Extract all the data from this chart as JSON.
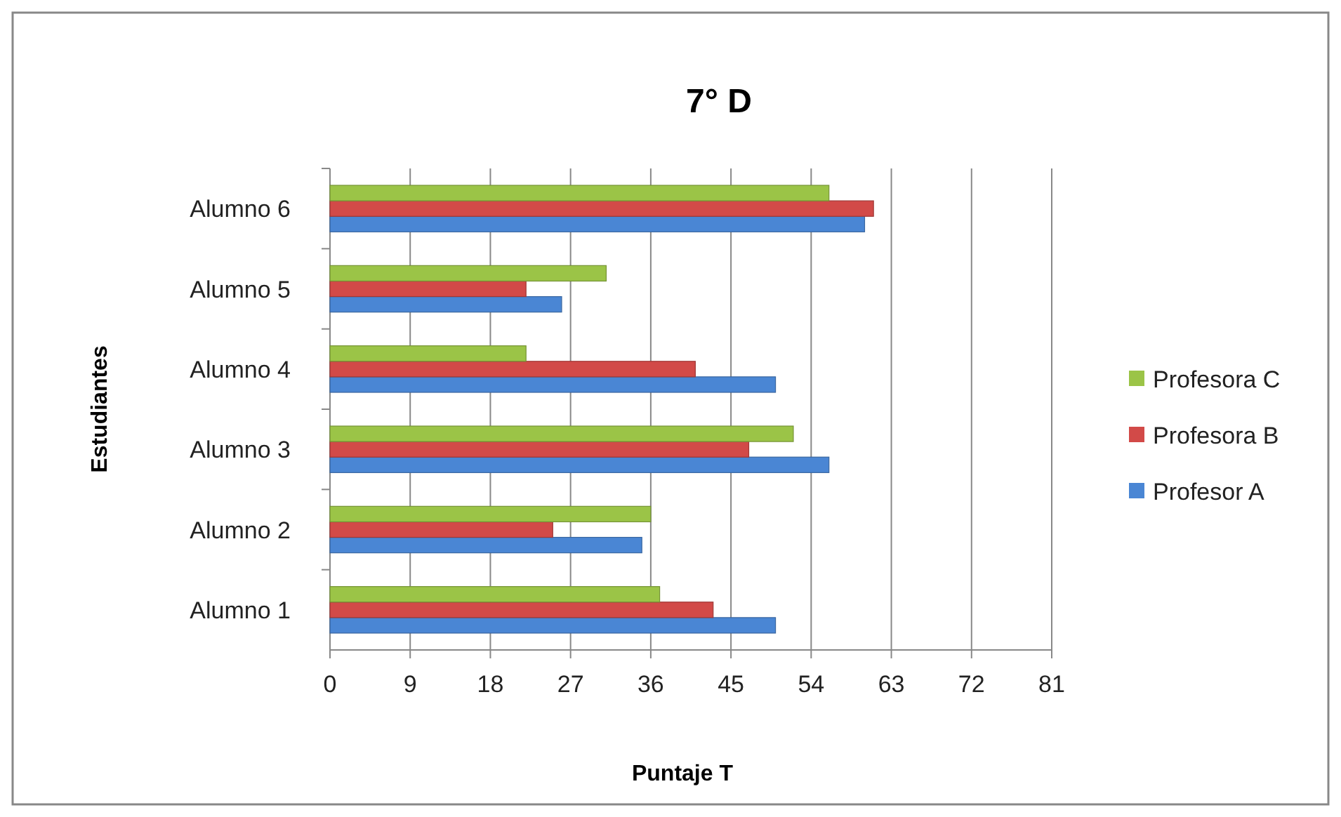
{
  "chart_data": {
    "type": "bar",
    "orientation": "horizontal",
    "title": "7° D",
    "xlabel": "Puntaje T",
    "ylabel": "Estudiantes",
    "categories": [
      "Alumno 6",
      "Alumno 5",
      "Alumno 4",
      "Alumno 3",
      "Alumno 2",
      "Alumno 1"
    ],
    "series": [
      {
        "name": "Profesor A",
        "color": "#4a86d4",
        "values": [
          60,
          26,
          50,
          56,
          35,
          50
        ]
      },
      {
        "name": "Profesora B",
        "color": "#d24a48",
        "values": [
          61,
          22,
          41,
          47,
          25,
          43
        ]
      },
      {
        "name": "Profesora C",
        "color": "#9bc447",
        "values": [
          56,
          31,
          22,
          52,
          36,
          37
        ]
      }
    ],
    "xlim": [
      0,
      81
    ],
    "xticks": [
      0,
      9,
      18,
      27,
      36,
      45,
      54,
      63,
      72,
      81
    ],
    "grid": "x",
    "legend": "right"
  }
}
